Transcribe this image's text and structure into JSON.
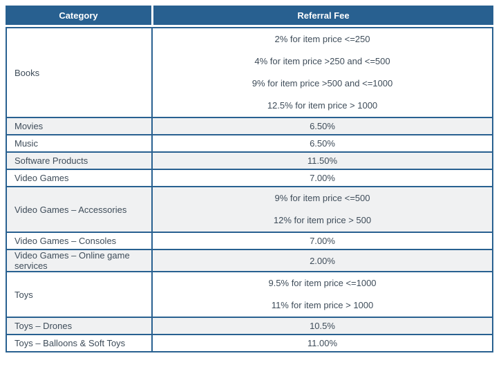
{
  "table": {
    "header": {
      "category": "Category",
      "referral_fee": "Referral Fee"
    },
    "rows": [
      {
        "category": "Books",
        "fees": [
          "2% for item price <=250",
          "4% for item price >250 and <=500",
          "9% for item price >500 and <=1000",
          "12.5% for item price > 1000"
        ]
      },
      {
        "category": "Movies",
        "fees": [
          "6.50%"
        ]
      },
      {
        "category": "Music",
        "fees": [
          "6.50%"
        ]
      },
      {
        "category": "Software Products",
        "fees": [
          "11.50%"
        ]
      },
      {
        "category": "Video Games",
        "fees": [
          "7.00%"
        ]
      },
      {
        "category": "Video Games – Accessories",
        "fees": [
          "9% for item price <=500",
          "12% for item price > 500"
        ]
      },
      {
        "category": "Video Games – Consoles",
        "fees": [
          "7.00%"
        ]
      },
      {
        "category": "Video Games – Online game services",
        "fees": [
          "2.00%"
        ]
      },
      {
        "category": "Toys",
        "fees": [
          "9.5% for item price <=1000",
          "11% for item price > 1000"
        ]
      },
      {
        "category": "Toys – Drones",
        "fees": [
          "10.5%"
        ]
      },
      {
        "category": "Toys – Balloons & Soft Toys",
        "fees": [
          "11.00%"
        ]
      }
    ],
    "colors": {
      "header_bg": "#286090",
      "border": "#286090",
      "alt_row_bg": "#f0f1f2",
      "header_text": "#ffffff",
      "body_text": "#3e4c59"
    }
  }
}
